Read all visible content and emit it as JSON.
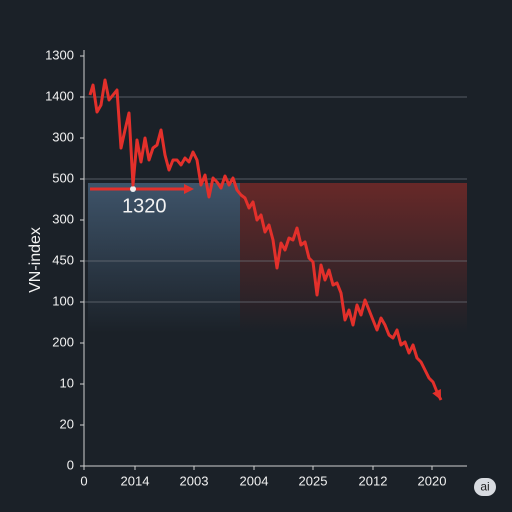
{
  "chart_data": {
    "type": "line",
    "y_label": "VN-index",
    "annotation": "1320",
    "badge": "ai",
    "xlim": [
      0,
      383
    ],
    "xticks": [
      0,
      {
        "value": 51,
        "label": "2014"
      },
      {
        "value": 110,
        "label": "2003"
      },
      {
        "value": 170,
        "label": "2004"
      },
      {
        "value": 229,
        "label": "2025"
      },
      {
        "value": 289,
        "label": "2012"
      },
      {
        "value": 348,
        "label": "2020"
      }
    ],
    "ylim": [
      0,
      410
    ],
    "yticks": [
      0,
      {
        "value": 41,
        "label": "20"
      },
      {
        "value": 82,
        "label": "10"
      },
      {
        "value": 123,
        "label": "200"
      },
      {
        "value": 164,
        "label": "100"
      },
      {
        "value": 205,
        "label": "450"
      },
      {
        "value": 246,
        "label": "300"
      },
      {
        "value": 287,
        "label": "500"
      },
      {
        "value": 328,
        "label": "300"
      },
      {
        "value": 369,
        "label": "1400"
      },
      {
        "value": 410,
        "label": "1300"
      }
    ],
    "series": [
      {
        "color": "#e3302b",
        "x": [
          6,
          9,
          13,
          17,
          21,
          25,
          29,
          33,
          37,
          41,
          45,
          49,
          53,
          57,
          61,
          65,
          69,
          73,
          77,
          81,
          85,
          89,
          93,
          97,
          101,
          105,
          109,
          113,
          117,
          121,
          125,
          129,
          133,
          137,
          141,
          145,
          149,
          153,
          157,
          161,
          165,
          169,
          173,
          177,
          181,
          185,
          189,
          193,
          197,
          201,
          205,
          209,
          213,
          217,
          221,
          225,
          229,
          233,
          237,
          241,
          245,
          249,
          253,
          257,
          261,
          265,
          269,
          273,
          277,
          281,
          285,
          289,
          293,
          297,
          301,
          305,
          309,
          313,
          317,
          321,
          325,
          329,
          333,
          337,
          341,
          345,
          349,
          353,
          357
        ],
        "values": [
          371,
          381,
          354,
          361,
          386,
          366,
          371,
          376,
          318,
          336,
          353,
          281,
          326,
          304,
          328,
          306,
          318,
          321,
          336,
          311,
          296,
          306,
          306,
          301,
          308,
          304,
          314,
          306,
          281,
          291,
          269,
          288,
          284,
          278,
          290,
          281,
          288,
          276,
          271,
          268,
          258,
          264,
          246,
          251,
          234,
          241,
          226,
          198,
          223,
          216,
          228,
          226,
          238,
          221,
          224,
          208,
          204,
          171,
          201,
          186,
          196,
          181,
          183,
          173,
          146,
          156,
          141,
          161,
          151,
          166,
          156,
          146,
          136,
          148,
          141,
          131,
          128,
          136,
          121,
          124,
          113,
          121,
          108,
          104,
          96,
          88,
          84,
          74,
          66
        ]
      }
    ]
  }
}
